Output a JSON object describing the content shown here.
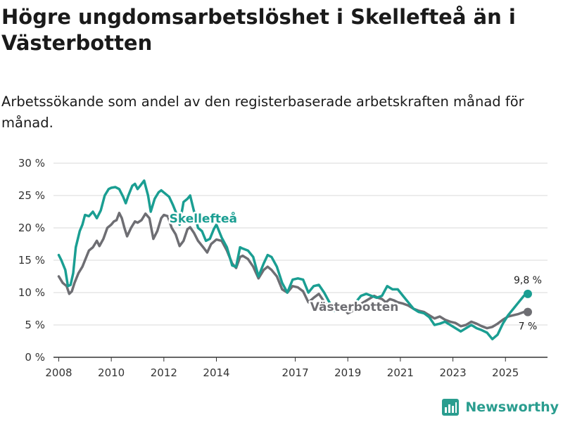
{
  "title": "Högre ungdomsarbetslöshet i Skellefteå än i Västerbotten",
  "subtitle": "Arbetssökande som andel av den registerbaserade arbetskraften månad för månad.",
  "brand": {
    "name": "Newsworthy"
  },
  "colors": {
    "skelleftea": "#1a9e92",
    "vasterbotten": "#6e6e73",
    "grid": "#d9d9d9",
    "axis": "#333333"
  },
  "chart_data": {
    "type": "line",
    "title": "Högre ungdomsarbetslöshet i Skellefteå än i Västerbotten",
    "xlabel": "",
    "ylabel": "",
    "ylim": [
      0,
      30
    ],
    "xlim": [
      2007.8,
      2026.6
    ],
    "y_ticks": [
      0,
      5,
      10,
      15,
      20,
      25,
      30
    ],
    "y_tick_labels": [
      "0 %",
      "5 %",
      "10 %",
      "15 %",
      "20 %",
      "25 %",
      "30 %"
    ],
    "x_ticks": [
      2008,
      2010,
      2012,
      2014,
      2017,
      2019,
      2021,
      2023,
      2025
    ],
    "x_tick_labels": [
      "2008",
      "2010",
      "2012",
      "2014",
      "2017",
      "2019",
      "2021",
      "2023",
      "2025"
    ],
    "series": [
      {
        "name": "Västerbotten",
        "label": "Västerbotten",
        "color": "#6e6e73",
        "end_label": "7 %",
        "x": [
          2008.0,
          2008.15,
          2008.3,
          2008.4,
          2008.5,
          2008.6,
          2008.75,
          2008.9,
          2009.0,
          2009.15,
          2009.3,
          2009.45,
          2009.55,
          2009.7,
          2009.85,
          2010.0,
          2010.1,
          2010.2,
          2010.3,
          2010.4,
          2010.5,
          2010.6,
          2010.75,
          2010.9,
          2011.0,
          2011.15,
          2011.3,
          2011.45,
          2011.6,
          2011.75,
          2011.9,
          2012.0,
          2012.15,
          2012.3,
          2012.45,
          2012.6,
          2012.75,
          2012.9,
          2013.0,
          2013.15,
          2013.3,
          2013.5,
          2013.65,
          2013.8,
          2014.0,
          2014.2,
          2014.4,
          2014.6,
          2014.75,
          2014.9,
          2015.0,
          2015.2,
          2015.4,
          2015.6,
          2015.8,
          2015.95,
          2016.1,
          2016.3,
          2016.5,
          2016.7,
          2016.9,
          2017.1,
          2017.3,
          2017.5,
          2017.7,
          2017.9,
          2018.0,
          2018.2,
          2018.4,
          2018.6,
          2018.8,
          2019.0,
          2019.2,
          2019.4,
          2019.6,
          2019.8,
          2020.0,
          2020.15,
          2020.3,
          2020.45,
          2020.6,
          2020.75,
          2020.9,
          2021.1,
          2021.3,
          2021.5,
          2021.7,
          2021.9,
          2022.1,
          2022.3,
          2022.5,
          2022.7,
          2022.9,
          2023.1,
          2023.3,
          2023.5,
          2023.7,
          2023.9,
          2024.1,
          2024.3,
          2024.5,
          2024.7,
          2024.9,
          2025.1,
          2025.3,
          2025.5,
          2025.7,
          2025.85
        ],
        "y": [
          12.5,
          11.5,
          11.0,
          9.8,
          10.2,
          11.5,
          13.0,
          14.0,
          15.0,
          16.5,
          17.0,
          18.0,
          17.2,
          18.3,
          20.0,
          20.5,
          21.0,
          21.2,
          22.3,
          21.5,
          20.0,
          18.7,
          20.0,
          21.0,
          20.8,
          21.2,
          22.2,
          21.5,
          18.3,
          19.5,
          21.5,
          22.0,
          21.8,
          20.0,
          19.0,
          17.2,
          18.0,
          19.8,
          20.1,
          19.2,
          18.0,
          17.0,
          16.2,
          17.5,
          18.2,
          18.0,
          16.5,
          14.5,
          13.8,
          15.5,
          15.7,
          15.2,
          14.0,
          12.2,
          13.5,
          14.0,
          13.5,
          12.5,
          10.5,
          10.0,
          11.0,
          10.8,
          10.2,
          8.5,
          9.2,
          9.8,
          9.2,
          8.0,
          7.2,
          7.5,
          7.8,
          6.8,
          7.2,
          8.0,
          8.5,
          9.0,
          9.5,
          9.2,
          9.0,
          8.5,
          9.0,
          8.8,
          8.5,
          8.3,
          8.0,
          7.5,
          7.2,
          7.0,
          6.5,
          6.0,
          6.3,
          5.8,
          5.5,
          5.3,
          4.8,
          5.0,
          5.5,
          5.2,
          4.8,
          4.5,
          4.7,
          5.2,
          5.8,
          6.3,
          6.5,
          6.7,
          7.0,
          7.0
        ]
      },
      {
        "name": "Skellefteå",
        "label": "Skellefteå",
        "color": "#1a9e92",
        "end_label": "9,8 %",
        "x": [
          2008.0,
          2008.1,
          2008.25,
          2008.35,
          2008.45,
          2008.55,
          2008.65,
          2008.8,
          2008.9,
          2009.0,
          2009.15,
          2009.3,
          2009.45,
          2009.6,
          2009.75,
          2009.9,
          2010.0,
          2010.15,
          2010.3,
          2010.45,
          2010.55,
          2010.65,
          2010.8,
          2010.9,
          2011.0,
          2011.1,
          2011.25,
          2011.4,
          2011.5,
          2011.65,
          2011.8,
          2011.9,
          2012.05,
          2012.2,
          2012.35,
          2012.5,
          2012.6,
          2012.75,
          2012.9,
          2013.0,
          2013.15,
          2013.3,
          2013.45,
          2013.6,
          2013.75,
          2013.9,
          2014.0,
          2014.2,
          2014.4,
          2014.6,
          2014.75,
          2014.9,
          2015.0,
          2015.2,
          2015.4,
          2015.6,
          2015.8,
          2015.95,
          2016.1,
          2016.3,
          2016.5,
          2016.7,
          2016.9,
          2017.1,
          2017.3,
          2017.5,
          2017.7,
          2017.9,
          2018.1,
          2018.3,
          2018.5,
          2018.7,
          2018.9,
          2019.1,
          2019.3,
          2019.5,
          2019.7,
          2019.9,
          2020.1,
          2020.3,
          2020.5,
          2020.7,
          2020.9,
          2021.1,
          2021.3,
          2021.5,
          2021.7,
          2021.9,
          2022.1,
          2022.3,
          2022.5,
          2022.7,
          2022.9,
          2023.1,
          2023.3,
          2023.5,
          2023.7,
          2023.9,
          2024.1,
          2024.3,
          2024.5,
          2024.7,
          2024.9,
          2025.1,
          2025.3,
          2025.5,
          2025.7,
          2025.85
        ],
        "y": [
          15.8,
          15.0,
          13.5,
          11.0,
          11.2,
          13.0,
          17.0,
          19.5,
          20.5,
          22.0,
          21.8,
          22.5,
          21.5,
          22.7,
          25.0,
          26.0,
          26.2,
          26.3,
          26.0,
          24.8,
          23.8,
          25.0,
          26.5,
          26.8,
          26.0,
          26.5,
          27.3,
          25.0,
          22.5,
          24.5,
          25.5,
          25.8,
          25.3,
          24.8,
          23.5,
          22.0,
          20.5,
          24.0,
          24.5,
          25.0,
          22.5,
          20.0,
          19.5,
          18.0,
          18.3,
          19.8,
          20.5,
          18.5,
          17.0,
          14.2,
          14.0,
          17.0,
          16.8,
          16.5,
          15.5,
          12.5,
          14.5,
          15.8,
          15.5,
          14.0,
          11.5,
          10.0,
          12.0,
          12.2,
          12.0,
          10.0,
          11.0,
          11.2,
          10.0,
          8.5,
          7.2,
          7.5,
          7.8,
          8.0,
          8.5,
          9.5,
          9.8,
          9.5,
          9.2,
          9.5,
          11.0,
          10.5,
          10.5,
          9.5,
          8.5,
          7.5,
          7.0,
          6.8,
          6.2,
          5.0,
          5.2,
          5.5,
          5.0,
          4.5,
          4.0,
          4.5,
          5.0,
          4.5,
          4.2,
          3.8,
          2.8,
          3.5,
          5.2,
          6.5,
          7.5,
          8.5,
          9.5,
          9.8
        ]
      }
    ]
  }
}
